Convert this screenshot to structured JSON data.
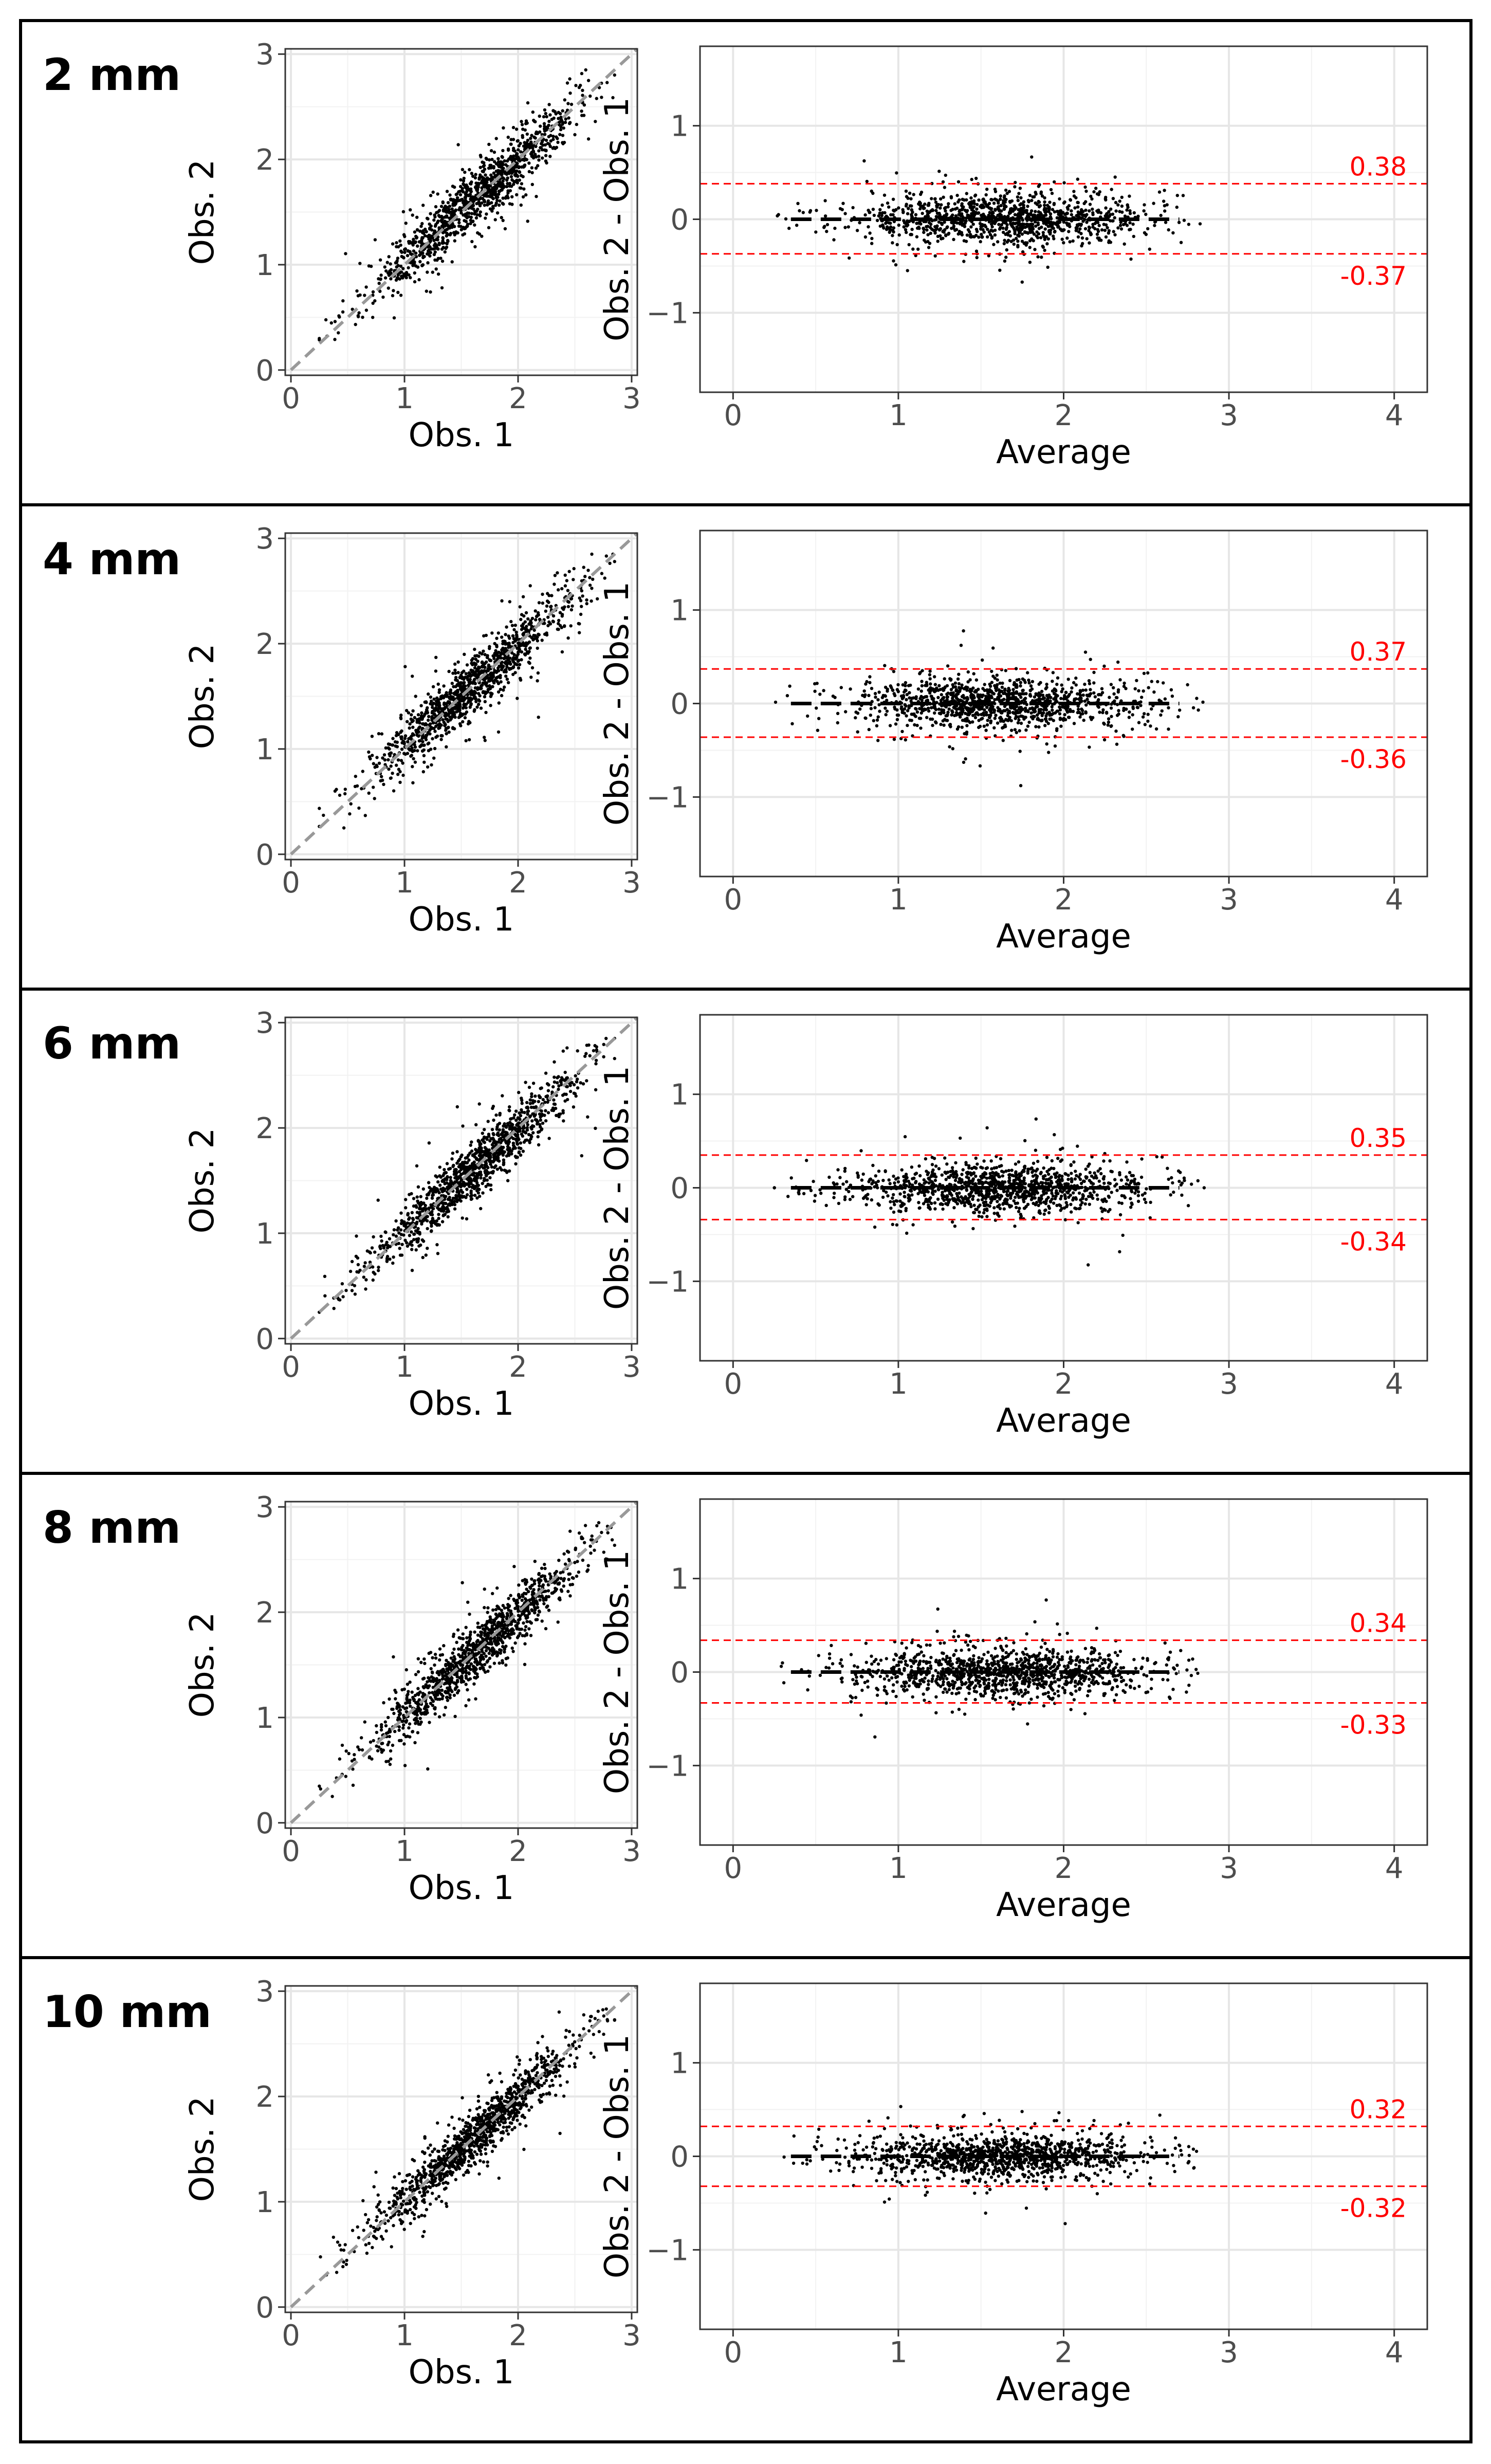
{
  "panel_labels": [
    "2 mm",
    "4 mm",
    "6 mm",
    "8 mm",
    "10 mm"
  ],
  "colors": {
    "background": "#ffffff",
    "panel_border": "#000000",
    "plot_border": "#333333",
    "grid_major": "#e6e6e6",
    "grid_minor": "#f2f2f2",
    "points": "#000000",
    "identity_line": "#999999",
    "mean_line": "#000000",
    "limits": "#ff0000",
    "tick_text": "#4d4d4d",
    "axis_title": "#000000"
  },
  "chart_data": [
    {
      "panel": "2 mm",
      "type": "scatter",
      "xlabel": "Obs. 1",
      "ylabel": "Obs. 2",
      "xlim": [
        -0.05,
        3.05
      ],
      "ylim": [
        -0.05,
        3.05
      ],
      "xticks": [
        0,
        1,
        2,
        3
      ],
      "yticks": [
        0,
        1,
        2,
        3
      ],
      "grid": true,
      "reference_line": "identity (y = x), dashed grey",
      "approx_n_points": 1800,
      "value_range": [
        0.3,
        2.75
      ],
      "approx_sd_of_difference": 0.19
    },
    {
      "panel": "2 mm",
      "type": "scatter",
      "xlabel": "Average",
      "ylabel": "Obs. 2 - Obs. 1",
      "xlim": [
        -0.2,
        4.2
      ],
      "ylim": [
        -1.85,
        1.85
      ],
      "xticks": [
        0,
        1,
        2,
        3,
        4
      ],
      "yticks": [
        -1,
        0,
        1
      ],
      "grid": true,
      "mean_difference": 0.0,
      "limits_of_agreement": [
        0.38,
        -0.37
      ],
      "limit_labels": [
        "0.38",
        "-0.37"
      ],
      "approx_n_points": 1800
    },
    {
      "panel": "4 mm",
      "type": "scatter",
      "xlabel": "Obs. 1",
      "ylabel": "Obs. 2",
      "xlim": [
        -0.05,
        3.05
      ],
      "ylim": [
        -0.05,
        3.05
      ],
      "xticks": [
        0,
        1,
        2,
        3
      ],
      "yticks": [
        0,
        1,
        2,
        3
      ],
      "grid": true,
      "reference_line": "identity (y = x), dashed grey",
      "approx_n_points": 1800,
      "value_range": [
        0.3,
        2.75
      ],
      "approx_sd_of_difference": 0.185
    },
    {
      "panel": "4 mm",
      "type": "scatter",
      "xlabel": "Average",
      "ylabel": "Obs. 2 - Obs. 1",
      "xlim": [
        -0.2,
        4.2
      ],
      "ylim": [
        -1.85,
        1.85
      ],
      "xticks": [
        0,
        1,
        2,
        3,
        4
      ],
      "yticks": [
        -1,
        0,
        1
      ],
      "grid": true,
      "mean_difference": 0.0,
      "limits_of_agreement": [
        0.37,
        -0.36
      ],
      "limit_labels": [
        "0.37",
        "-0.36"
      ],
      "approx_n_points": 1800
    },
    {
      "panel": "6 mm",
      "type": "scatter",
      "xlabel": "Obs. 1",
      "ylabel": "Obs. 2",
      "xlim": [
        -0.05,
        3.05
      ],
      "ylim": [
        -0.05,
        3.05
      ],
      "xticks": [
        0,
        1,
        2,
        3
      ],
      "yticks": [
        0,
        1,
        2,
        3
      ],
      "grid": true,
      "reference_line": "identity (y = x), dashed grey",
      "approx_n_points": 1800,
      "value_range": [
        0.3,
        2.75
      ],
      "approx_sd_of_difference": 0.175
    },
    {
      "panel": "6 mm",
      "type": "scatter",
      "xlabel": "Average",
      "ylabel": "Obs. 2 - Obs. 1",
      "xlim": [
        -0.2,
        4.2
      ],
      "ylim": [
        -1.85,
        1.85
      ],
      "xticks": [
        0,
        1,
        2,
        3,
        4
      ],
      "yticks": [
        -1,
        0,
        1
      ],
      "grid": true,
      "mean_difference": 0.0,
      "limits_of_agreement": [
        0.35,
        -0.34
      ],
      "limit_labels": [
        "0.35",
        "-0.34"
      ],
      "approx_n_points": 1800
    },
    {
      "panel": "8 mm",
      "type": "scatter",
      "xlabel": "Obs. 1",
      "ylabel": "Obs. 2",
      "xlim": [
        -0.05,
        3.05
      ],
      "ylim": [
        -0.05,
        3.05
      ],
      "xticks": [
        0,
        1,
        2,
        3
      ],
      "yticks": [
        0,
        1,
        2,
        3
      ],
      "grid": true,
      "reference_line": "identity (y = x), dashed grey",
      "approx_n_points": 1800,
      "value_range": [
        0.3,
        2.75
      ],
      "approx_sd_of_difference": 0.17
    },
    {
      "panel": "8 mm",
      "type": "scatter",
      "xlabel": "Average",
      "ylabel": "Obs. 2 - Obs. 1",
      "xlim": [
        -0.2,
        4.2
      ],
      "ylim": [
        -1.85,
        1.85
      ],
      "xticks": [
        0,
        1,
        2,
        3,
        4
      ],
      "yticks": [
        -1,
        0,
        1
      ],
      "grid": true,
      "mean_difference": 0.0,
      "limits_of_agreement": [
        0.34,
        -0.33
      ],
      "limit_labels": [
        "0.34",
        "-0.33"
      ],
      "approx_n_points": 1800
    },
    {
      "panel": "10 mm",
      "type": "scatter",
      "xlabel": "Obs. 1",
      "ylabel": "Obs. 2",
      "xlim": [
        -0.05,
        3.05
      ],
      "ylim": [
        -0.05,
        3.05
      ],
      "xticks": [
        0,
        1,
        2,
        3
      ],
      "yticks": [
        0,
        1,
        2,
        3
      ],
      "grid": true,
      "reference_line": "identity (y = x), dashed grey",
      "approx_n_points": 1800,
      "value_range": [
        0.3,
        2.75
      ],
      "approx_sd_of_difference": 0.165
    },
    {
      "panel": "10 mm",
      "type": "scatter",
      "xlabel": "Average",
      "ylabel": "Obs. 2 - Obs. 1",
      "xlim": [
        -0.2,
        4.2
      ],
      "ylim": [
        -1.85,
        1.85
      ],
      "xticks": [
        0,
        1,
        2,
        3,
        4
      ],
      "yticks": [
        -1,
        0,
        1
      ],
      "grid": true,
      "mean_difference": 0.0,
      "limits_of_agreement": [
        0.32,
        -0.32
      ],
      "limit_labels": [
        "0.32",
        "-0.32"
      ],
      "approx_n_points": 1800
    }
  ]
}
